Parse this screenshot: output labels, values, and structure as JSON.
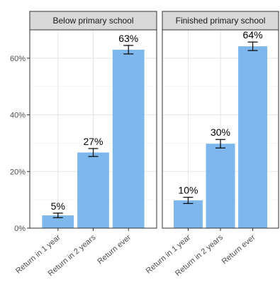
{
  "chart_data": {
    "type": "bar",
    "categories": [
      "Return in 1 year",
      "Return in 2 years",
      "Return ever"
    ],
    "ylim": [
      0,
      0.7
    ],
    "yticks": [
      0,
      0.2,
      0.4,
      0.6
    ],
    "yticklabels": [
      "0%",
      "20%",
      "40%",
      "60%"
    ],
    "grid": true,
    "bar_color": "#7db7ec",
    "facet_strip_color": "#d9d9d9",
    "panels": [
      {
        "name": "Below primary school",
        "values": [
          0.045,
          0.267,
          0.63
        ],
        "error_low": [
          0.037,
          0.253,
          0.615
        ],
        "error_high": [
          0.053,
          0.281,
          0.645
        ],
        "labels": [
          "5%",
          "27%",
          "63%"
        ]
      },
      {
        "name": "Finished primary school",
        "values": [
          0.098,
          0.298,
          0.642
        ],
        "error_low": [
          0.087,
          0.283,
          0.627
        ],
        "error_high": [
          0.109,
          0.313,
          0.657
        ],
        "labels": [
          "10%",
          "30%",
          "64%"
        ]
      }
    ]
  }
}
